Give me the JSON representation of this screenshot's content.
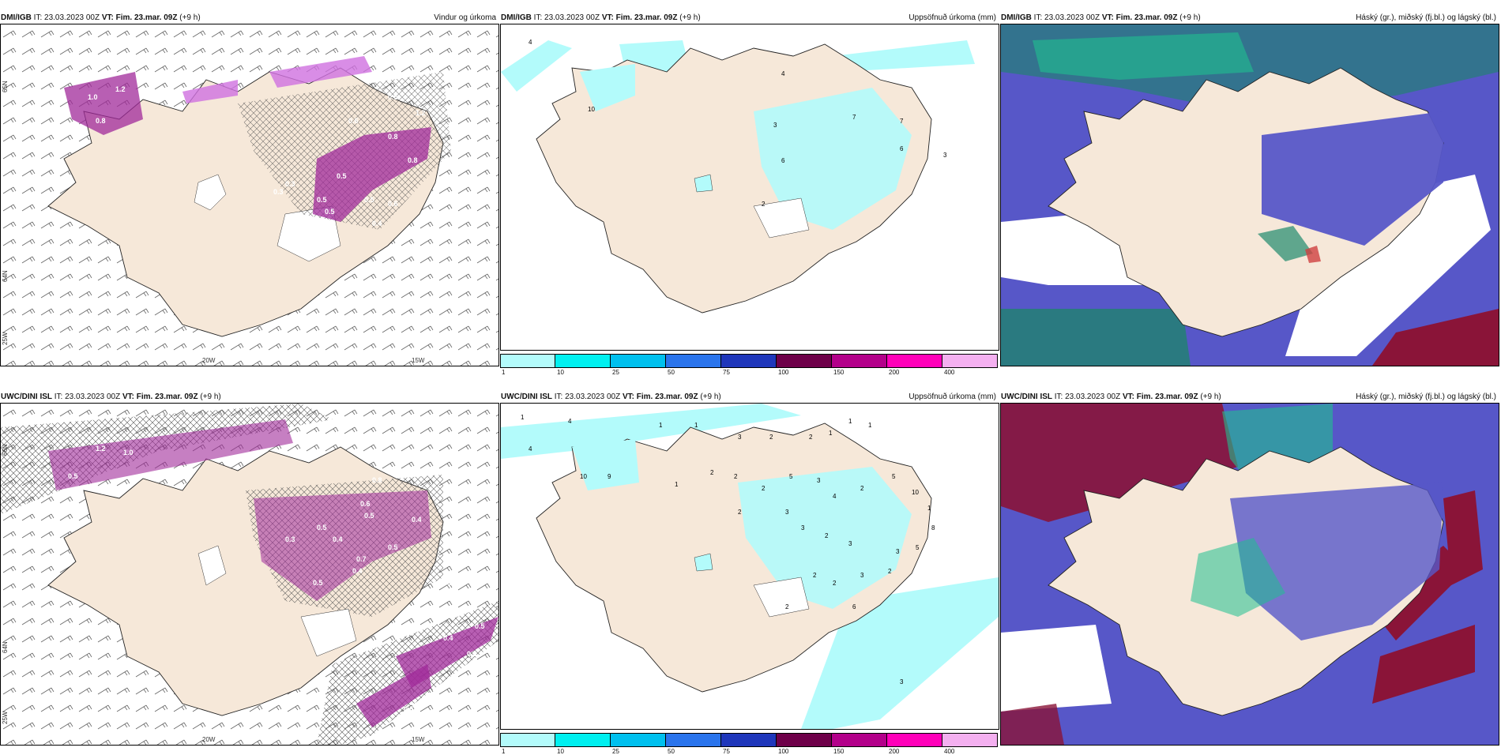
{
  "panels": {
    "p1": {
      "model": "DMI/IGB",
      "it_label": "IT:",
      "it_value": "23.03.2023 00Z",
      "vt_label": "VT: Fim. 23.mar. 09Z",
      "lead": "(+9 h)",
      "product": "Vindur og úrkoma"
    },
    "p2": {
      "model": "DMI/IGB",
      "it_label": "IT:",
      "it_value": "23.03.2023 00Z",
      "vt_label": "VT: Fim. 23.mar. 09Z",
      "lead": "(+9 h)",
      "product": "Uppsöfnuð úrkoma (mm)"
    },
    "p3": {
      "model": "DMI/IGB",
      "it_label": "IT:",
      "it_value": "23.03.2023 00Z",
      "vt_label": "VT: Fim. 23.mar. 09Z",
      "lead": "(+9 h)",
      "product": "Háský (gr.), miðský (fj.bl.) og lágský (bl.)"
    },
    "p4": {
      "model": "UWC/DINI ISL",
      "it_label": "IT:",
      "it_value": "23.03.2023 00Z",
      "vt_label": "VT: Fim. 23.mar. 09Z",
      "lead": "(+9 h)",
      "product": ""
    },
    "p5": {
      "model": "UWC/DINI ISL",
      "it_label": "IT:",
      "it_value": "23.03.2023 00Z",
      "vt_label": "VT: Fim. 23.mar. 09Z",
      "lead": "(+9 h)",
      "product": "Uppsöfnuð úrkoma (mm)"
    },
    "p6": {
      "model": "UWC/DINI ISL",
      "it_label": "IT:",
      "it_value": "23.03.2023 00Z",
      "vt_label": "VT: Fim. 23.mar. 09Z",
      "lead": "(+9 h)",
      "product": "Háský (gr.), miðský (fj.bl.) og lágský (bl.)"
    }
  },
  "axes": {
    "lon_20w": "20W",
    "lon_15w": "15W",
    "lat_65n": "65N",
    "lat_64n": "64N",
    "lat_66n": "66N",
    "lon_25w": "25W"
  },
  "wind_labels_top": [
    "1.0",
    "1.2",
    "0.8",
    "0.8",
    "1.2",
    "0.6",
    "0.5",
    "0.8",
    "0.3",
    "0.5",
    "0.5",
    "0.6",
    "0.3",
    "0.5",
    "0.5",
    "0.4"
  ],
  "wind_labels_bottom": [
    "1.2",
    "1.0",
    "0.5",
    "0.8",
    "0.5",
    "0.5",
    "0.6",
    "0.4",
    "0.3",
    "0.4",
    "0.5",
    "0.4",
    "0.5",
    "0.7",
    "0.3",
    "0.5",
    "0.4",
    "0.5",
    "0.3"
  ],
  "precip_labels_top": [
    "4",
    "10",
    "3",
    "4",
    "7",
    "7",
    "6",
    "3",
    "6",
    "2"
  ],
  "precip_labels_bottom": [
    "1",
    "4",
    "1",
    "1",
    "3",
    "2",
    "2",
    "1",
    "1",
    "1",
    "10",
    "9",
    "4",
    "1",
    "2",
    "2",
    "2",
    "5",
    "3",
    "4",
    "2",
    "5",
    "10",
    "1",
    "8",
    "2",
    "3",
    "3",
    "2",
    "3",
    "3",
    "5",
    "2",
    "2",
    "3",
    "2",
    "6",
    "2",
    "3"
  ],
  "colorbar": {
    "ticks": [
      "1",
      "10",
      "25",
      "50",
      "75",
      "100",
      "150",
      "200",
      "400"
    ],
    "colors": [
      "#b3fbfb",
      "#00f0f0",
      "#00c0ee",
      "#2a74ec",
      "#1f37bb",
      "#6e0049",
      "#b3008a",
      "#ff00b9",
      "#f4b0f0"
    ]
  },
  "colors": {
    "land": "#f6e8d9",
    "snow": "#ffffff",
    "precip_purple": "#a02a9a",
    "cloud_high": "#1f8a6c",
    "cloud_mid": "#5757c8",
    "cloud_low": "#8a1438",
    "sea_cyan": "#b3fbfb"
  }
}
